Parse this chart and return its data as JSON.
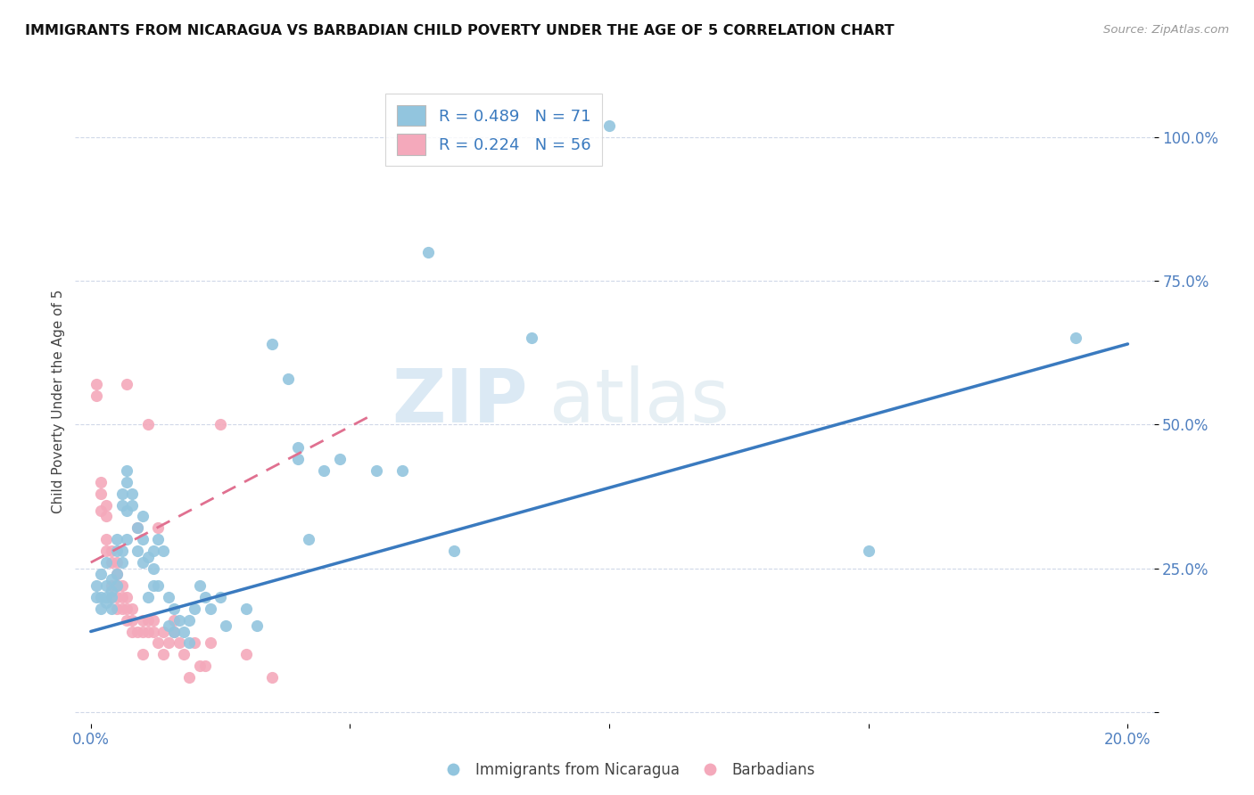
{
  "title": "IMMIGRANTS FROM NICARAGUA VS BARBADIAN CHILD POVERTY UNDER THE AGE OF 5 CORRELATION CHART",
  "source": "Source: ZipAtlas.com",
  "xlabel_ticks": [
    "0.0%",
    "",
    "",
    "",
    "20.0%"
  ],
  "xlabel_tick_vals": [
    0.0,
    0.05,
    0.1,
    0.15,
    0.2
  ],
  "ylabel_ticks": [
    "100.0%",
    "75.0%",
    "50.0%",
    "25.0%",
    ""
  ],
  "ylabel_tick_vals": [
    1.0,
    0.75,
    0.5,
    0.25,
    0.0
  ],
  "ylabel": "Child Poverty Under the Age of 5",
  "legend_blue_label": "Immigrants from Nicaragua",
  "legend_pink_label": "Barbadians",
  "R_blue": 0.489,
  "N_blue": 71,
  "R_pink": 0.224,
  "N_pink": 56,
  "blue_color": "#92c5de",
  "pink_color": "#f4a9bb",
  "blue_line_color": "#3a7abf",
  "pink_line_color": "#e07090",
  "background_color": "#ffffff",
  "watermark_zip": "ZIP",
  "watermark_atlas": "atlas",
  "blue_scatter": [
    [
      0.001,
      0.2
    ],
    [
      0.001,
      0.22
    ],
    [
      0.002,
      0.2
    ],
    [
      0.002,
      0.24
    ],
    [
      0.002,
      0.18
    ],
    [
      0.003,
      0.2
    ],
    [
      0.003,
      0.22
    ],
    [
      0.003,
      0.26
    ],
    [
      0.003,
      0.19
    ],
    [
      0.004,
      0.21
    ],
    [
      0.004,
      0.23
    ],
    [
      0.004,
      0.18
    ],
    [
      0.004,
      0.2
    ],
    [
      0.005,
      0.24
    ],
    [
      0.005,
      0.28
    ],
    [
      0.005,
      0.22
    ],
    [
      0.005,
      0.3
    ],
    [
      0.006,
      0.38
    ],
    [
      0.006,
      0.36
    ],
    [
      0.006,
      0.26
    ],
    [
      0.006,
      0.28
    ],
    [
      0.007,
      0.42
    ],
    [
      0.007,
      0.4
    ],
    [
      0.007,
      0.35
    ],
    [
      0.007,
      0.3
    ],
    [
      0.008,
      0.38
    ],
    [
      0.008,
      0.36
    ],
    [
      0.009,
      0.32
    ],
    [
      0.009,
      0.28
    ],
    [
      0.01,
      0.3
    ],
    [
      0.01,
      0.26
    ],
    [
      0.01,
      0.34
    ],
    [
      0.011,
      0.27
    ],
    [
      0.011,
      0.2
    ],
    [
      0.012,
      0.28
    ],
    [
      0.012,
      0.25
    ],
    [
      0.012,
      0.22
    ],
    [
      0.013,
      0.3
    ],
    [
      0.013,
      0.22
    ],
    [
      0.014,
      0.28
    ],
    [
      0.015,
      0.2
    ],
    [
      0.015,
      0.15
    ],
    [
      0.016,
      0.18
    ],
    [
      0.016,
      0.14
    ],
    [
      0.017,
      0.16
    ],
    [
      0.018,
      0.14
    ],
    [
      0.019,
      0.12
    ],
    [
      0.019,
      0.16
    ],
    [
      0.02,
      0.18
    ],
    [
      0.021,
      0.22
    ],
    [
      0.022,
      0.2
    ],
    [
      0.023,
      0.18
    ],
    [
      0.025,
      0.2
    ],
    [
      0.026,
      0.15
    ],
    [
      0.03,
      0.18
    ],
    [
      0.032,
      0.15
    ],
    [
      0.035,
      0.64
    ],
    [
      0.038,
      0.58
    ],
    [
      0.04,
      0.46
    ],
    [
      0.04,
      0.44
    ],
    [
      0.042,
      0.3
    ],
    [
      0.045,
      0.42
    ],
    [
      0.048,
      0.44
    ],
    [
      0.055,
      0.42
    ],
    [
      0.06,
      0.42
    ],
    [
      0.065,
      0.8
    ],
    [
      0.07,
      0.28
    ],
    [
      0.085,
      0.65
    ],
    [
      0.1,
      1.02
    ],
    [
      0.15,
      0.28
    ],
    [
      0.19,
      0.65
    ]
  ],
  "pink_scatter": [
    [
      0.001,
      0.55
    ],
    [
      0.001,
      0.57
    ],
    [
      0.002,
      0.38
    ],
    [
      0.002,
      0.4
    ],
    [
      0.002,
      0.35
    ],
    [
      0.003,
      0.36
    ],
    [
      0.003,
      0.3
    ],
    [
      0.003,
      0.34
    ],
    [
      0.003,
      0.28
    ],
    [
      0.004,
      0.26
    ],
    [
      0.004,
      0.28
    ],
    [
      0.004,
      0.22
    ],
    [
      0.004,
      0.2
    ],
    [
      0.005,
      0.24
    ],
    [
      0.005,
      0.26
    ],
    [
      0.005,
      0.22
    ],
    [
      0.005,
      0.2
    ],
    [
      0.005,
      0.18
    ],
    [
      0.005,
      0.22
    ],
    [
      0.006,
      0.22
    ],
    [
      0.006,
      0.2
    ],
    [
      0.006,
      0.18
    ],
    [
      0.007,
      0.2
    ],
    [
      0.007,
      0.57
    ],
    [
      0.007,
      0.18
    ],
    [
      0.007,
      0.16
    ],
    [
      0.008,
      0.18
    ],
    [
      0.008,
      0.16
    ],
    [
      0.008,
      0.14
    ],
    [
      0.009,
      0.32
    ],
    [
      0.009,
      0.14
    ],
    [
      0.01,
      0.16
    ],
    [
      0.01,
      0.14
    ],
    [
      0.01,
      0.1
    ],
    [
      0.011,
      0.16
    ],
    [
      0.011,
      0.14
    ],
    [
      0.011,
      0.5
    ],
    [
      0.012,
      0.16
    ],
    [
      0.012,
      0.14
    ],
    [
      0.013,
      0.32
    ],
    [
      0.013,
      0.12
    ],
    [
      0.014,
      0.14
    ],
    [
      0.014,
      0.1
    ],
    [
      0.015,
      0.12
    ],
    [
      0.016,
      0.14
    ],
    [
      0.016,
      0.16
    ],
    [
      0.017,
      0.12
    ],
    [
      0.018,
      0.1
    ],
    [
      0.019,
      0.06
    ],
    [
      0.02,
      0.12
    ],
    [
      0.021,
      0.08
    ],
    [
      0.022,
      0.08
    ],
    [
      0.023,
      0.12
    ],
    [
      0.025,
      0.5
    ],
    [
      0.03,
      0.1
    ],
    [
      0.035,
      0.06
    ]
  ],
  "blue_trend_x": [
    0.0,
    0.2
  ],
  "blue_trend_y": [
    0.14,
    0.64
  ],
  "pink_trend_x": [
    0.0,
    0.055
  ],
  "pink_trend_y": [
    0.26,
    0.52
  ],
  "xlim": [
    -0.003,
    0.205
  ],
  "ylim": [
    -0.02,
    1.1
  ],
  "grid_color": "#d0d8e8",
  "tick_color": "#5080c0"
}
